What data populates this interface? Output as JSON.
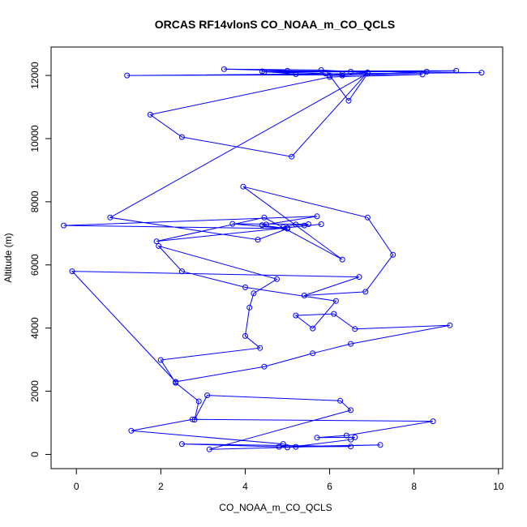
{
  "chart_data": {
    "type": "line",
    "title": "ORCAS RF14vlonS CO_NOAA_m_CO_QCLS",
    "xlabel": "CO_NOAA_m_CO_QCLS",
    "ylabel": "Altitude (m)",
    "xlim": [
      -0.6,
      10.1
    ],
    "ylim": [
      -450,
      12900
    ],
    "xticks": [
      0,
      2,
      4,
      6,
      8,
      10
    ],
    "yticks": [
      0,
      2000,
      4000,
      6000,
      8000,
      10000,
      12000
    ],
    "grid": false,
    "color": "#0000ff",
    "series": [
      {
        "x": [
          5.0,
          6.5,
          6.6,
          5.7,
          6.4,
          8.45,
          2.75,
          1.3,
          4.9,
          5.2,
          6.5,
          2.5,
          4.8,
          7.2,
          3.15,
          6.5,
          6.25,
          3.1,
          2.8,
          2.9,
          2.35,
          2.0,
          4.35,
          4.0,
          4.1,
          4.2,
          4.75,
          1.95,
          2.5,
          4.0,
          6.15,
          5.6,
          5.2,
          6.1,
          6.6,
          8.85,
          6.5,
          5.6,
          4.45,
          2.35,
          -0.1,
          6.7,
          5.4,
          6.85,
          7.5,
          6.9,
          3.95,
          6.3,
          4.45,
          1.9,
          5.8,
          5.0,
          4.9,
          5.2,
          5.4,
          5.5,
          3.7,
          5.0,
          -0.3,
          5.7,
          4.5,
          4.4,
          5.0,
          4.3,
          0.8,
          6.9,
          6.45,
          6.0,
          6.3,
          6.9,
          5.1,
          2.5,
          1.75,
          6.0,
          8.2,
          1.2,
          9.6,
          5.0,
          3.5,
          5.8,
          6.5,
          9.0,
          4.4,
          5.2,
          6.3,
          8.3,
          4.45,
          5.9
        ],
        "y": [
          220,
          470,
          540,
          530,
          600,
          1050,
          1110,
          750,
          330,
          240,
          250,
          330,
          240,
          300,
          160,
          1400,
          1700,
          1870,
          1100,
          1680,
          2270,
          2990,
          3370,
          3750,
          4650,
          5100,
          5550,
          6600,
          5800,
          5290,
          4860,
          3990,
          4400,
          4450,
          3970,
          4090,
          3500,
          3200,
          2780,
          2300,
          5800,
          5620,
          5030,
          5150,
          6320,
          7500,
          8480,
          6170,
          7500,
          6750,
          7290,
          7180,
          7200,
          7280,
          7250,
          7290,
          7300,
          7150,
          7250,
          7540,
          7280,
          7260,
          7150,
          6800,
          7500,
          12060,
          11200,
          12000,
          12050,
          12100,
          9430,
          10050,
          10760,
          11950,
          12030,
          12000,
          12090,
          12150,
          12200,
          12170,
          12120,
          12150,
          12130,
          12040,
          12000,
          12120,
          12110,
          12060
        ]
      }
    ]
  }
}
